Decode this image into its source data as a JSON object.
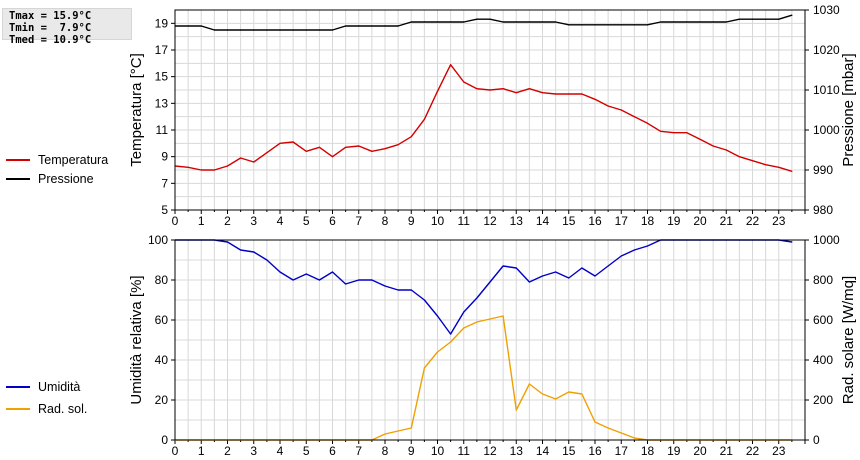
{
  "stats": {
    "tmax": "Tmax = 15.9°C",
    "tmin": "Tmin =  7.9°C",
    "tmed": "Tmed = 10.9°C"
  },
  "colors": {
    "temperature": "#d40000",
    "pressure": "#000000",
    "humidity": "#0000c8",
    "radiation": "#f0a000",
    "grid": "#d8d8d8"
  },
  "chart_data": [
    {
      "type": "line",
      "x_ticks": [
        "0",
        "1",
        "2",
        "3",
        "4",
        "5",
        "6",
        "7",
        "8",
        "9",
        "10",
        "11",
        "12",
        "13",
        "14",
        "15",
        "16",
        "17",
        "18",
        "19",
        "20",
        "21",
        "22",
        "23"
      ],
      "xlim": [
        0,
        24
      ],
      "ylabel": "Temperatura [°C]",
      "ylabel_right": "Pressione [mbar]",
      "y_ticks": [
        "5",
        "7",
        "9",
        "11",
        "13",
        "15",
        "17",
        "19"
      ],
      "ylim": [
        5,
        20
      ],
      "y_ticks_right": [
        "980",
        "990",
        "1000",
        "1010",
        "1020",
        "1030"
      ],
      "ylim_right": [
        980,
        1030
      ],
      "grid": true,
      "legend_position": "left",
      "series": [
        {
          "name": "Temperatura",
          "axis": "left",
          "color": "#d40000",
          "x": [
            0,
            0.5,
            1,
            1.5,
            2,
            2.5,
            3,
            3.5,
            4,
            4.5,
            5,
            5.5,
            6,
            6.5,
            7,
            7.5,
            8,
            8.5,
            9,
            9.5,
            10,
            10.5,
            11,
            11.5,
            12,
            12.5,
            13,
            13.5,
            14,
            14.5,
            15,
            15.5,
            16,
            16.5,
            17,
            17.5,
            18,
            18.5,
            19,
            19.5,
            20,
            20.5,
            21,
            21.5,
            22,
            22.5,
            23,
            23.5
          ],
          "y": [
            8.3,
            8.2,
            8.0,
            8.0,
            8.3,
            8.9,
            8.6,
            9.3,
            10.0,
            10.1,
            9.4,
            9.7,
            9.0,
            9.7,
            9.8,
            9.4,
            9.6,
            9.9,
            10.5,
            11.8,
            13.9,
            15.9,
            14.6,
            14.1,
            14.0,
            14.1,
            13.8,
            14.1,
            13.8,
            13.7,
            13.7,
            13.7,
            13.3,
            12.8,
            12.5,
            12.0,
            11.5,
            10.9,
            10.8,
            10.8,
            10.3,
            9.8,
            9.5,
            9.0,
            8.7,
            8.4,
            8.2,
            7.9
          ]
        },
        {
          "name": "Pressione",
          "axis": "right",
          "color": "#000000",
          "x": [
            0,
            0.5,
            1,
            1.5,
            2,
            2.5,
            3,
            3.5,
            4,
            4.5,
            5,
            5.5,
            6,
            6.5,
            7,
            7.5,
            8,
            8.5,
            9,
            9.5,
            10,
            10.5,
            11,
            11.5,
            12,
            12.5,
            13,
            13.5,
            14,
            14.5,
            15,
            15.5,
            16,
            16.5,
            17,
            17.5,
            18,
            18.5,
            19,
            19.5,
            20,
            20.5,
            21,
            21.5,
            22,
            22.5,
            23,
            23.5
          ],
          "y": [
            1026,
            1026,
            1026,
            1025,
            1025,
            1025,
            1025,
            1025,
            1025,
            1025,
            1025,
            1025,
            1025,
            1026,
            1026,
            1026,
            1026,
            1026,
            1027,
            1027,
            1027,
            1027,
            1027,
            1027.7,
            1027.7,
            1027,
            1027,
            1027,
            1027,
            1027,
            1026.3,
            1026.3,
            1026.3,
            1026.3,
            1026.3,
            1026.3,
            1026.3,
            1027,
            1027,
            1027,
            1027,
            1027,
            1027,
            1027.7,
            1027.7,
            1027.7,
            1027.7,
            1028.7
          ]
        }
      ]
    },
    {
      "type": "line",
      "x_ticks": [
        "0",
        "1",
        "2",
        "3",
        "4",
        "5",
        "6",
        "7",
        "8",
        "9",
        "10",
        "11",
        "12",
        "13",
        "14",
        "15",
        "16",
        "17",
        "18",
        "19",
        "20",
        "21",
        "22",
        "23"
      ],
      "xlim": [
        0,
        24
      ],
      "ylabel": "Umidità relativa [%]",
      "ylabel_right": "Rad. solare [W/mq]",
      "y_ticks": [
        "0",
        "20",
        "40",
        "60",
        "80",
        "100"
      ],
      "ylim": [
        0,
        100
      ],
      "y_ticks_right": [
        "0",
        "200",
        "400",
        "600",
        "800",
        "1000"
      ],
      "ylim_right": [
        0,
        1000
      ],
      "grid": true,
      "legend_position": "left",
      "series": [
        {
          "name": "Umidità",
          "axis": "left",
          "color": "#0000c8",
          "x": [
            0,
            0.5,
            1,
            1.5,
            2,
            2.5,
            3,
            3.5,
            4,
            4.5,
            5,
            5.5,
            6,
            6.5,
            7,
            7.5,
            8,
            8.5,
            9,
            9.5,
            10,
            10.5,
            11,
            11.5,
            12,
            12.5,
            13,
            13.5,
            14,
            14.5,
            15,
            15.5,
            16,
            16.5,
            17,
            17.5,
            18,
            18.5,
            19,
            19.5,
            20,
            20.5,
            21,
            21.5,
            22,
            22.5,
            23,
            23.5
          ],
          "y": [
            100,
            100,
            100,
            100,
            99,
            95,
            94,
            90,
            84,
            80,
            83,
            80,
            84,
            78,
            80,
            80,
            77,
            75,
            75,
            70,
            62,
            53,
            64,
            71,
            79,
            87,
            86,
            79,
            82,
            84,
            81,
            86,
            82,
            87,
            92,
            95,
            97,
            100,
            100,
            100,
            100,
            100,
            100,
            100,
            100,
            100,
            100,
            99
          ]
        },
        {
          "name": "Rad. sol.",
          "axis": "right",
          "color": "#f0a000",
          "x": [
            0,
            0.5,
            1,
            1.5,
            2,
            2.5,
            3,
            3.5,
            4,
            4.5,
            5,
            5.5,
            6,
            6.5,
            7,
            7.5,
            8,
            8.5,
            9,
            9.5,
            10,
            10.5,
            11,
            11.5,
            12,
            12.5,
            13,
            13.5,
            14,
            14.5,
            15,
            15.5,
            16,
            16.5,
            17,
            17.5,
            18,
            18.5,
            19,
            19.5,
            20,
            20.5,
            21,
            21.5,
            22,
            22.5,
            23,
            23.5
          ],
          "y": [
            0,
            0,
            0,
            0,
            0,
            0,
            0,
            0,
            0,
            0,
            0,
            0,
            0,
            0,
            0,
            0,
            30,
            45,
            60,
            360,
            440,
            490,
            560,
            590,
            605,
            620,
            150,
            280,
            230,
            205,
            240,
            230,
            90,
            60,
            35,
            10,
            0,
            0,
            0,
            0,
            0,
            0,
            0,
            0,
            0,
            0,
            0,
            0
          ]
        }
      ]
    }
  ]
}
